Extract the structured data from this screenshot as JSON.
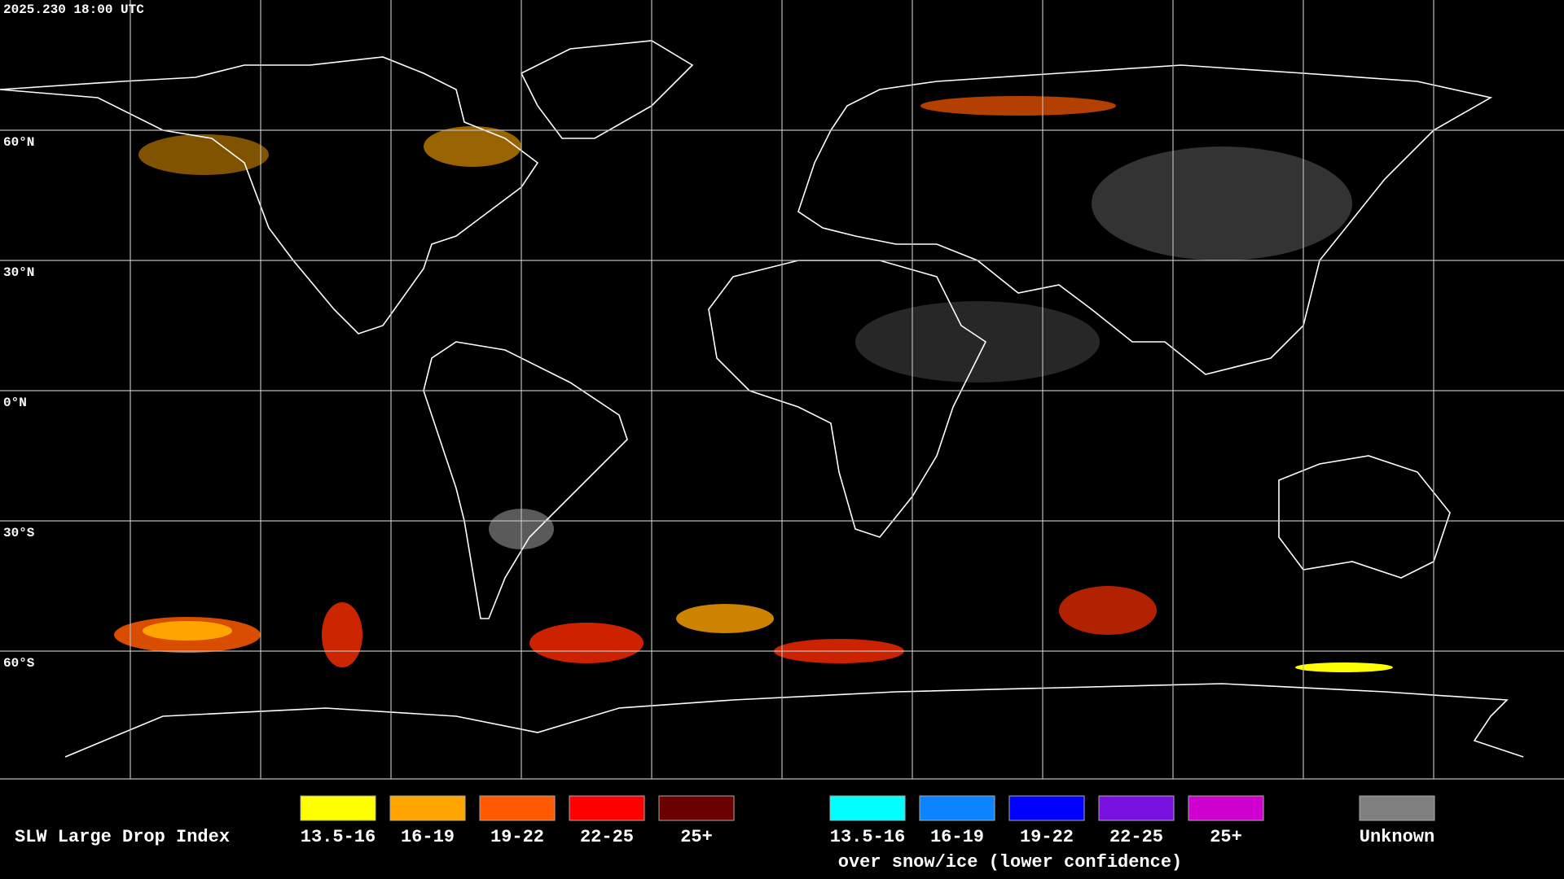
{
  "timestamp": "2025.230 18:00 UTC",
  "lat_labels": [
    "60°N",
    "30°N",
    "0°N",
    "30°S",
    "60°S"
  ],
  "legend": {
    "title": "SLW Large Drop Index",
    "water_classes": [
      {
        "label": "13.5-16",
        "color": "#ffff00"
      },
      {
        "label": "16-19",
        "color": "#ffa500"
      },
      {
        "label": "19-22",
        "color": "#ff5a00"
      },
      {
        "label": "22-25",
        "color": "#ff0000"
      },
      {
        "label": "25+",
        "color": "#6a0000"
      }
    ],
    "snow_classes": [
      {
        "label": "13.5-16",
        "color": "#00ffff"
      },
      {
        "label": "16-19",
        "color": "#0a84ff"
      },
      {
        "label": "19-22",
        "color": "#0000ff"
      },
      {
        "label": "22-25",
        "color": "#7a10e0"
      },
      {
        "label": "25+",
        "color": "#d000d0"
      }
    ],
    "snow_caption": "over snow/ice (lower confidence)",
    "unknown": {
      "label": "Unknown",
      "color": "#808080"
    }
  }
}
